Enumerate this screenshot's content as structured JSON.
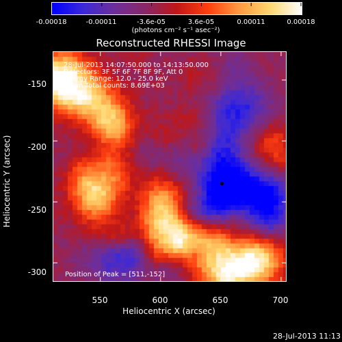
{
  "colorbar": {
    "tick_labels": [
      "-0.00018",
      "-0.00011",
      "-3.6e-05",
      "3.6e-05",
      "0.00011",
      "0.00018"
    ],
    "units_label": "(photons cm⁻² s⁻¹ asec⁻²)",
    "colors": [
      "#0000ff",
      "#3d2ad8",
      "#6e2f9a",
      "#8a2868",
      "#c01818",
      "#ff4010",
      "#ff9a40",
      "#ffd870",
      "#ffffff"
    ]
  },
  "title": "Reconstructed RHESSI Image",
  "annotations": [
    "28-Jul-2013 14:07:50.000 to 14:13:50.000",
    "Detectors: 3F 5F 6F 7F 8F 9F, Att 0",
    "Energy Range: 12.0 - 25.0 keV",
    "Clean    Total counts: 8.69E+03"
  ],
  "peak_label": "Position of Peak = [511,-152]",
  "chart_data": {
    "type": "heatmap",
    "title": "Reconstructed RHESSI Image",
    "xlabel": "Heliocentric X (arcsec)",
    "ylabel": "Heliocentric Y (arcsec)",
    "x_ticks": [
      550,
      600,
      650,
      700
    ],
    "y_ticks": [
      -150,
      -200,
      -250,
      -300
    ],
    "x_tick_labels": [
      "550",
      "600",
      "650",
      "700"
    ],
    "y_tick_labels": [
      "-150",
      "-200",
      "-250",
      "-300"
    ],
    "xlim": [
      511,
      704
    ],
    "ylim": [
      -315,
      -127
    ],
    "peak_position": [
      511,
      -152
    ],
    "marker_position": [
      651,
      -235
    ],
    "hot_spots": [
      {
        "x": 515,
        "y": -148,
        "level": 1.0
      },
      {
        "x": 535,
        "y": -160,
        "level": 0.55
      },
      {
        "x": 555,
        "y": -180,
        "level": 0.6
      },
      {
        "x": 545,
        "y": -245,
        "level": 0.65
      },
      {
        "x": 600,
        "y": -245,
        "level": 0.5
      },
      {
        "x": 600,
        "y": -270,
        "level": 0.7
      },
      {
        "x": 625,
        "y": -275,
        "level": 0.55
      },
      {
        "x": 680,
        "y": -295,
        "level": 0.75
      },
      {
        "x": 660,
        "y": -305,
        "level": 0.6
      },
      {
        "x": 640,
        "y": -300,
        "level": 0.45
      },
      {
        "x": 690,
        "y": -200,
        "level": 0.35
      }
    ],
    "cold_spots": [
      {
        "x": 655,
        "y": -235,
        "level": -0.9
      },
      {
        "x": 640,
        "y": -200,
        "level": -0.5
      },
      {
        "x": 665,
        "y": -170,
        "level": -0.5
      },
      {
        "x": 690,
        "y": -250,
        "level": -0.45
      },
      {
        "x": 565,
        "y": -295,
        "level": -0.4
      }
    ]
  },
  "timestamp": "28-Jul-2013 11:13"
}
